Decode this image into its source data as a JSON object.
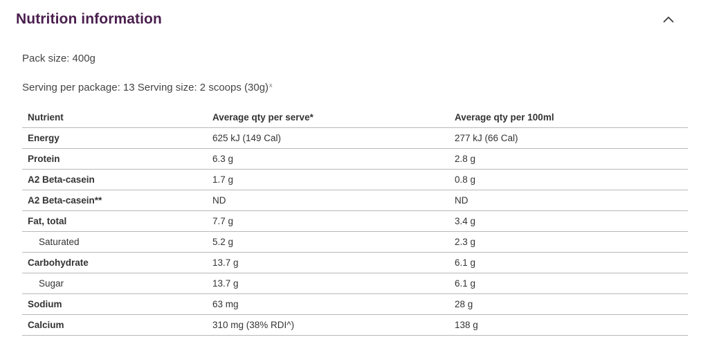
{
  "header": {
    "title": "Nutrition information",
    "collapse_icon": "chevron-up-icon"
  },
  "pack_size": "Pack size: 400g",
  "serving": {
    "text": "Serving per package: 13 Serving size: 2 scoops (30g)",
    "footnote_mark": "x"
  },
  "table": {
    "headers": [
      "Nutrient",
      "Average qty per serve*",
      "Average qty per 100ml"
    ],
    "rows": [
      {
        "nutrient": "Energy",
        "per_serve": "625 kJ (149 Cal)",
        "per_100ml": "277 kJ (66 Cal)",
        "sub": false
      },
      {
        "nutrient": "Protein",
        "per_serve": "6.3 g",
        "per_100ml": "2.8 g",
        "sub": false
      },
      {
        "nutrient": "A2 Beta-casein",
        "per_serve": "1.7 g",
        "per_100ml": "0.8 g",
        "sub": false
      },
      {
        "nutrient": "A2 Beta-casein**",
        "per_serve": "ND",
        "per_100ml": "ND",
        "sub": false
      },
      {
        "nutrient": "Fat, total",
        "per_serve": "7.7 g",
        "per_100ml": "3.4 g",
        "sub": false
      },
      {
        "nutrient": "Saturated",
        "per_serve": "5.2 g",
        "per_100ml": "2.3 g",
        "sub": true
      },
      {
        "nutrient": "Carbohydrate",
        "per_serve": "13.7 g",
        "per_100ml": "6.1 g",
        "sub": false
      },
      {
        "nutrient": "Sugar",
        "per_serve": "13.7 g",
        "per_100ml": "6.1 g",
        "sub": true
      },
      {
        "nutrient": "Sodium",
        "per_serve": "63 mg",
        "per_100ml": "28 g",
        "sub": false
      },
      {
        "nutrient": "Calcium",
        "per_serve": "310 mg (38% RDI^)",
        "per_100ml": "138 g",
        "sub": false
      }
    ]
  },
  "colors": {
    "title": "#4a1f4e",
    "text": "#333333",
    "divider": "#b8b8b8"
  }
}
